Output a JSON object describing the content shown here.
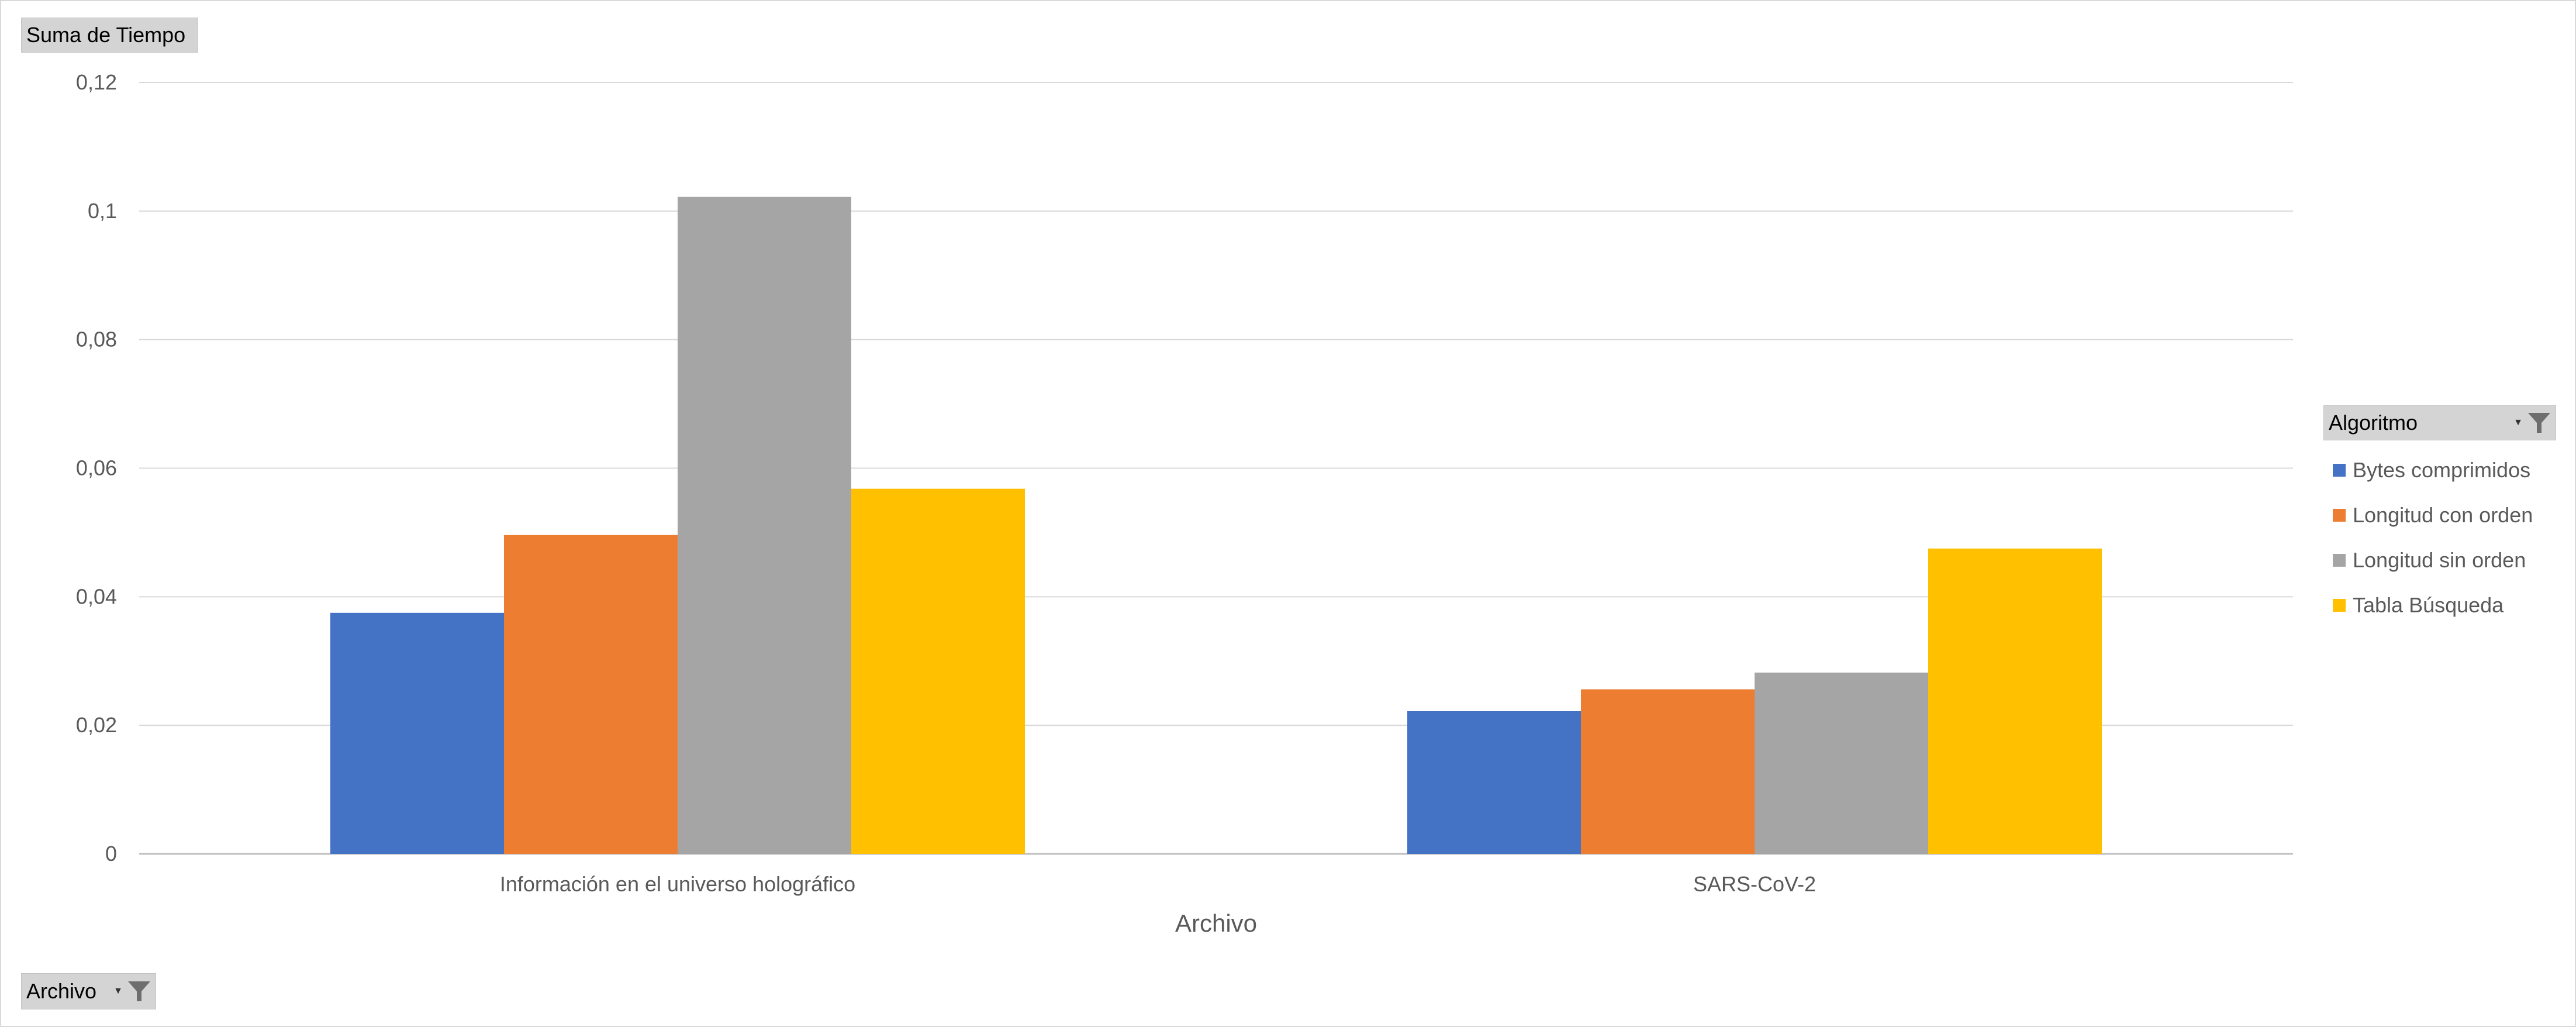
{
  "value_field": {
    "label": "Suma de Tiempo"
  },
  "axis_field": {
    "label": "Archivo"
  },
  "legend_field": {
    "label": "Algoritmo"
  },
  "chart_data": {
    "type": "bar",
    "categories": [
      "Información en el universo holográfico",
      "SARS-CoV-2"
    ],
    "series": [
      {
        "name": "Bytes comprimidos",
        "color": "#4472c4",
        "values": [
          0.0375,
          0.0222
        ]
      },
      {
        "name": "Longitud con orden",
        "color": "#ed7d31",
        "values": [
          0.0496,
          0.0256
        ]
      },
      {
        "name": "Longitud sin orden",
        "color": "#a5a5a5",
        "values": [
          0.1022,
          0.0282
        ]
      },
      {
        "name": "Tabla Búsqueda",
        "color": "#ffc000",
        "values": [
          0.0568,
          0.0475
        ]
      }
    ],
    "y_ticks": [
      "0",
      "0,02",
      "0,04",
      "0,06",
      "0,08",
      "0,1",
      "0,12"
    ],
    "xlabel": "Archivo",
    "ylim": [
      0,
      0.12
    ],
    "grid": true,
    "legend_position": "right"
  }
}
